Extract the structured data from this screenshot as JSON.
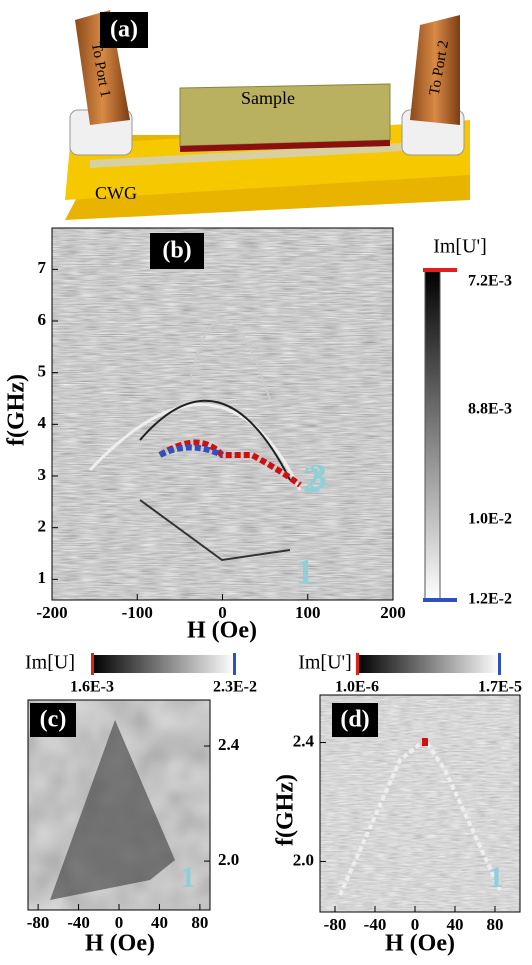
{
  "panel_a": {
    "label": "(a)",
    "sample": "Sample",
    "port1": "To Port 1",
    "port2": "To Port 2",
    "waveguide": "CWG"
  },
  "panel_b": {
    "label": "(b)",
    "xlabel": "H (Oe)",
    "ylabel": "f(GHz)",
    "xlim": [
      -200,
      200
    ],
    "xticks": [
      -200,
      -100,
      0,
      100,
      200
    ],
    "ylim": [
      0.6,
      7.8
    ],
    "yticks": [
      1,
      2,
      3,
      4,
      5,
      6,
      7
    ],
    "colorbar_title": "Im[U']",
    "colorbar_labels": [
      "7.2E-3",
      "8.8E-3",
      "1.0E-2",
      "1.2E-2"
    ],
    "mode_labels": [
      3,
      2,
      1
    ]
  },
  "panel_c": {
    "label": "(c)",
    "xlabel": "H (Oe)",
    "xlim": [
      -90,
      90
    ],
    "xticks": [
      -80,
      -40,
      0,
      40,
      80
    ],
    "ylim": [
      1.83,
      2.56
    ],
    "yticks": [
      {
        "value": 2,
        "label": "2.0"
      },
      2.4
    ],
    "colorbar_title": "Im[U]",
    "colorbar_labels": [
      "1.6E-3",
      "2.3E-2"
    ],
    "mode_label": 1
  },
  "panel_d": {
    "label": "(d)",
    "xlabel": "H (Oe)",
    "ylabel": "f(GHz)",
    "xlim": [
      -95,
      105
    ],
    "xticks": [
      -80,
      -40,
      0,
      40,
      80
    ],
    "ylim": [
      1.83,
      2.56
    ],
    "yticks": [
      {
        "value": 2,
        "label": "2.0"
      },
      2.4
    ],
    "colorbar_title": "Im[U']",
    "colorbar_labels": [
      "1.0E-6",
      "1.7E-5"
    ],
    "mode_label": 1
  }
}
